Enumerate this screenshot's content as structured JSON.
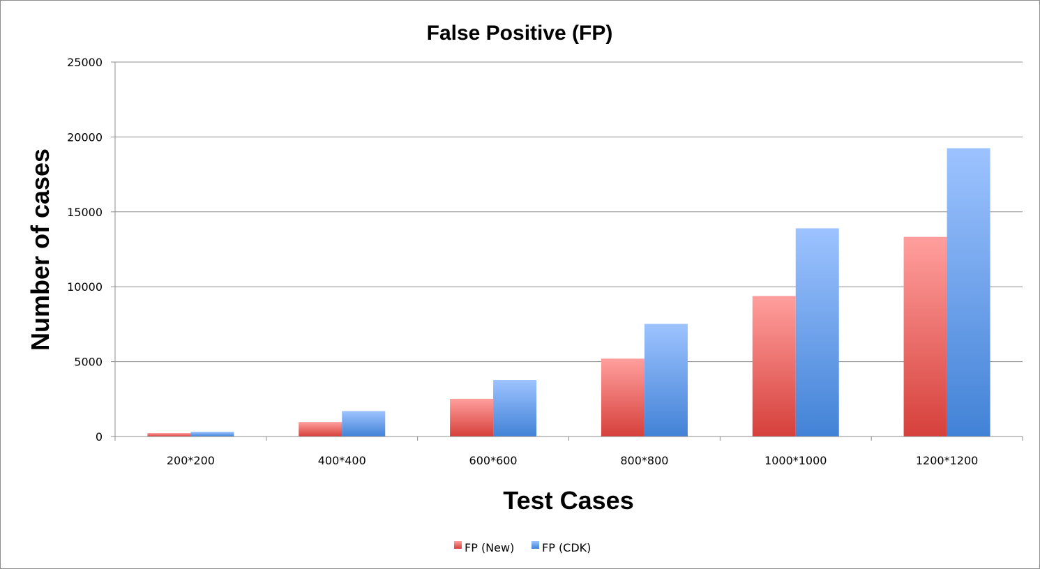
{
  "chart_data": {
    "type": "bar",
    "title": "False Positive (FP)",
    "xlabel": "Test Cases",
    "ylabel": "Number of cases",
    "categories": [
      "200*200",
      "400*400",
      "600*600",
      "800*800",
      "1000*1000",
      "1200*1200"
    ],
    "series": [
      {
        "name": "FP (New)",
        "values": [
          230,
          970,
          2520,
          5200,
          9380,
          13330
        ],
        "color": "#e2534e"
      },
      {
        "name": "FP (CDK)",
        "values": [
          310,
          1700,
          3770,
          7520,
          13900,
          19250
        ],
        "color": "#4f8fe0"
      }
    ],
    "ylim": [
      0,
      25000
    ],
    "yticks": [
      "0",
      "5000",
      "10000",
      "15000",
      "20000",
      "25000"
    ],
    "grid": true,
    "legend_position": "bottom"
  }
}
